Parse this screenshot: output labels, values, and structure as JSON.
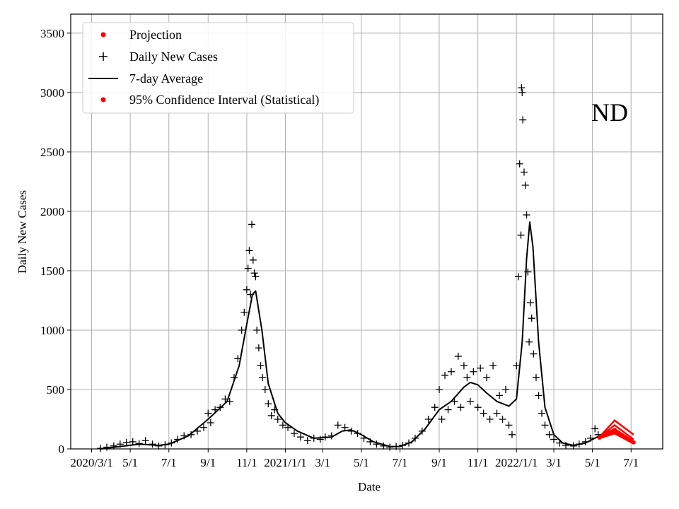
{
  "chart_data": {
    "type": "scatter",
    "title": "",
    "annotation": "ND",
    "xlabel": "Date",
    "ylabel": "Daily New Cases",
    "xlim": [
      "2020-01-28",
      "2022-08-20"
    ],
    "ylim": [
      0,
      3660
    ],
    "grid": true,
    "legend_position": "top-left",
    "x_ticks": [
      {
        "date": "2020-03-01",
        "label": "2020/3/1"
      },
      {
        "date": "2020-05-01",
        "label": "5/1"
      },
      {
        "date": "2020-07-01",
        "label": "7/1"
      },
      {
        "date": "2020-09-01",
        "label": "9/1"
      },
      {
        "date": "2020-11-01",
        "label": "11/1"
      },
      {
        "date": "2021-01-01",
        "label": "2021/1/1"
      },
      {
        "date": "2021-03-01",
        "label": "3/1"
      },
      {
        "date": "2021-05-01",
        "label": "5/1"
      },
      {
        "date": "2021-07-01",
        "label": "7/1"
      },
      {
        "date": "2021-09-01",
        "label": "9/1"
      },
      {
        "date": "2021-11-01",
        "label": "11/1"
      },
      {
        "date": "2022-01-01",
        "label": "2022/1/1"
      },
      {
        "date": "2022-03-01",
        "label": "3/1"
      },
      {
        "date": "2022-05-01",
        "label": "5/1"
      },
      {
        "date": "2022-07-01",
        "label": "7/1"
      }
    ],
    "y_ticks": [
      "0",
      "500",
      "1000",
      "1500",
      "2000",
      "2500",
      "3000",
      "3500"
    ],
    "legend": [
      {
        "label": "Projection",
        "marker": "dot",
        "color": "#ff0000"
      },
      {
        "label": "Daily New Cases",
        "marker": "plus",
        "color": "#000000"
      },
      {
        "label": "7-day Average",
        "marker": "line",
        "color": "#000000"
      },
      {
        "label": "95% Confidence Interval (Statistical)",
        "marker": "dot",
        "color": "#ff0000"
      }
    ],
    "series": [
      {
        "name": "7-day Average",
        "color": "#000000",
        "points": [
          [
            "2020-03-15",
            0
          ],
          [
            "2020-04-15",
            20
          ],
          [
            "2020-05-15",
            40
          ],
          [
            "2020-06-15",
            30
          ],
          [
            "2020-07-01",
            40
          ],
          [
            "2020-08-01",
            110
          ],
          [
            "2020-09-01",
            250
          ],
          [
            "2020-10-01",
            400
          ],
          [
            "2020-10-20",
            700
          ],
          [
            "2020-11-01",
            1050
          ],
          [
            "2020-11-10",
            1300
          ],
          [
            "2020-11-15",
            1330
          ],
          [
            "2020-11-25",
            1000
          ],
          [
            "2020-12-05",
            550
          ],
          [
            "2020-12-20",
            300
          ],
          [
            "2021-01-01",
            220
          ],
          [
            "2021-01-20",
            150
          ],
          [
            "2021-02-15",
            90
          ],
          [
            "2021-03-15",
            100
          ],
          [
            "2021-04-01",
            150
          ],
          [
            "2021-04-15",
            160
          ],
          [
            "2021-05-01",
            120
          ],
          [
            "2021-05-20",
            60
          ],
          [
            "2021-06-15",
            20
          ],
          [
            "2021-07-01",
            20
          ],
          [
            "2021-07-20",
            60
          ],
          [
            "2021-08-10",
            170
          ],
          [
            "2021-09-01",
            330
          ],
          [
            "2021-09-20",
            400
          ],
          [
            "2021-10-10",
            520
          ],
          [
            "2021-10-20",
            560
          ],
          [
            "2021-11-01",
            540
          ],
          [
            "2021-11-15",
            470
          ],
          [
            "2021-12-01",
            400
          ],
          [
            "2021-12-20",
            360
          ],
          [
            "2022-01-01",
            420
          ],
          [
            "2022-01-10",
            900
          ],
          [
            "2022-01-17",
            1600
          ],
          [
            "2022-01-22",
            1910
          ],
          [
            "2022-01-27",
            1700
          ],
          [
            "2022-02-05",
            900
          ],
          [
            "2022-02-15",
            350
          ],
          [
            "2022-03-01",
            120
          ],
          [
            "2022-03-15",
            50
          ],
          [
            "2022-04-01",
            30
          ],
          [
            "2022-04-20",
            50
          ],
          [
            "2022-05-01",
            80
          ],
          [
            "2022-05-12",
            110
          ]
        ]
      },
      {
        "name": "Daily New Cases",
        "color": "#000000",
        "points": [
          [
            "2020-03-15",
            5
          ],
          [
            "2020-03-25",
            15
          ],
          [
            "2020-04-05",
            25
          ],
          [
            "2020-04-15",
            40
          ],
          [
            "2020-04-25",
            55
          ],
          [
            "2020-05-05",
            60
          ],
          [
            "2020-05-15",
            45
          ],
          [
            "2020-05-25",
            70
          ],
          [
            "2020-06-05",
            40
          ],
          [
            "2020-06-15",
            25
          ],
          [
            "2020-06-25",
            35
          ],
          [
            "2020-07-05",
            50
          ],
          [
            "2020-07-15",
            80
          ],
          [
            "2020-07-25",
            110
          ],
          [
            "2020-08-05",
            120
          ],
          [
            "2020-08-15",
            150
          ],
          [
            "2020-08-25",
            180
          ],
          [
            "2020-09-01",
            300
          ],
          [
            "2020-09-05",
            220
          ],
          [
            "2020-09-12",
            330
          ],
          [
            "2020-09-20",
            350
          ],
          [
            "2020-09-28",
            420
          ],
          [
            "2020-10-05",
            400
          ],
          [
            "2020-10-12",
            600
          ],
          [
            "2020-10-18",
            760
          ],
          [
            "2020-10-24",
            1000
          ],
          [
            "2020-10-28",
            1150
          ],
          [
            "2020-11-01",
            1340
          ],
          [
            "2020-11-03",
            1520
          ],
          [
            "2020-11-05",
            1670
          ],
          [
            "2020-11-07",
            1300
          ],
          [
            "2020-11-09",
            1890
          ],
          [
            "2020-11-11",
            1590
          ],
          [
            "2020-11-13",
            1480
          ],
          [
            "2020-11-15",
            1450
          ],
          [
            "2020-11-17",
            1000
          ],
          [
            "2020-11-20",
            850
          ],
          [
            "2020-11-23",
            700
          ],
          [
            "2020-11-26",
            600
          ],
          [
            "2020-11-30",
            500
          ],
          [
            "2020-12-05",
            380
          ],
          [
            "2020-12-10",
            280
          ],
          [
            "2020-12-15",
            330
          ],
          [
            "2020-12-20",
            250
          ],
          [
            "2020-12-28",
            200
          ],
          [
            "2021-01-05",
            180
          ],
          [
            "2021-01-15",
            130
          ],
          [
            "2021-01-25",
            100
          ],
          [
            "2021-02-05",
            70
          ],
          [
            "2021-02-15",
            90
          ],
          [
            "2021-02-25",
            80
          ],
          [
            "2021-03-05",
            100
          ],
          [
            "2021-03-15",
            110
          ],
          [
            "2021-03-25",
            200
          ],
          [
            "2021-04-05",
            180
          ],
          [
            "2021-04-15",
            150
          ],
          [
            "2021-04-25",
            130
          ],
          [
            "2021-05-05",
            90
          ],
          [
            "2021-05-15",
            60
          ],
          [
            "2021-05-25",
            40
          ],
          [
            "2021-06-05",
            25
          ],
          [
            "2021-06-15",
            15
          ],
          [
            "2021-06-25",
            20
          ],
          [
            "2021-07-05",
            30
          ],
          [
            "2021-07-15",
            50
          ],
          [
            "2021-07-25",
            90
          ],
          [
            "2021-08-05",
            150
          ],
          [
            "2021-08-15",
            250
          ],
          [
            "2021-08-25",
            350
          ],
          [
            "2021-09-01",
            500
          ],
          [
            "2021-09-05",
            250
          ],
          [
            "2021-09-10",
            620
          ],
          [
            "2021-09-15",
            330
          ],
          [
            "2021-09-20",
            650
          ],
          [
            "2021-09-25",
            400
          ],
          [
            "2021-10-01",
            780
          ],
          [
            "2021-10-05",
            350
          ],
          [
            "2021-10-10",
            700
          ],
          [
            "2021-10-15",
            600
          ],
          [
            "2021-10-20",
            400
          ],
          [
            "2021-10-25",
            650
          ],
          [
            "2021-11-01",
            350
          ],
          [
            "2021-11-05",
            680
          ],
          [
            "2021-11-10",
            300
          ],
          [
            "2021-11-15",
            600
          ],
          [
            "2021-11-20",
            250
          ],
          [
            "2021-11-25",
            700
          ],
          [
            "2021-12-01",
            300
          ],
          [
            "2021-12-05",
            450
          ],
          [
            "2021-12-10",
            250
          ],
          [
            "2021-12-15",
            500
          ],
          [
            "2021-12-20",
            200
          ],
          [
            "2021-12-25",
            120
          ],
          [
            "2022-01-01",
            700
          ],
          [
            "2022-01-04",
            1450
          ],
          [
            "2022-01-06",
            2400
          ],
          [
            "2022-01-08",
            1800
          ],
          [
            "2022-01-09",
            3040
          ],
          [
            "2022-01-10",
            3000
          ],
          [
            "2022-01-11",
            2770
          ],
          [
            "2022-01-13",
            2330
          ],
          [
            "2022-01-15",
            2220
          ],
          [
            "2022-01-17",
            1970
          ],
          [
            "2022-01-19",
            1490
          ],
          [
            "2022-01-21",
            900
          ],
          [
            "2022-01-23",
            1230
          ],
          [
            "2022-01-25",
            1100
          ],
          [
            "2022-01-28",
            800
          ],
          [
            "2022-02-01",
            600
          ],
          [
            "2022-02-05",
            450
          ],
          [
            "2022-02-10",
            300
          ],
          [
            "2022-02-15",
            200
          ],
          [
            "2022-02-22",
            120
          ],
          [
            "2022-03-01",
            80
          ],
          [
            "2022-03-10",
            50
          ],
          [
            "2022-03-20",
            30
          ],
          [
            "2022-04-01",
            25
          ],
          [
            "2022-04-10",
            40
          ],
          [
            "2022-04-20",
            60
          ],
          [
            "2022-04-28",
            90
          ],
          [
            "2022-05-05",
            170
          ],
          [
            "2022-05-10",
            120
          ]
        ]
      },
      {
        "name": "Projection",
        "color": "#ff0000",
        "points": [
          [
            "2022-05-12",
            95
          ],
          [
            "2022-06-05",
            160
          ],
          [
            "2022-07-05",
            55
          ]
        ]
      },
      {
        "name": "95% Confidence Interval (Statistical)",
        "color": "#ff0000",
        "bands": [
          [
            [
              "2022-05-12",
              100
            ],
            [
              "2022-06-05",
              240
            ],
            [
              "2022-07-05",
              120
            ]
          ],
          [
            [
              "2022-05-12",
              98
            ],
            [
              "2022-06-05",
              200
            ],
            [
              "2022-07-05",
              80
            ]
          ],
          [
            [
              "2022-05-12",
              92
            ],
            [
              "2022-06-05",
              140
            ],
            [
              "2022-07-05",
              50
            ]
          ],
          [
            [
              "2022-05-12",
              90
            ],
            [
              "2022-06-05",
              130
            ],
            [
              "2022-07-05",
              45
            ]
          ]
        ]
      }
    ]
  }
}
